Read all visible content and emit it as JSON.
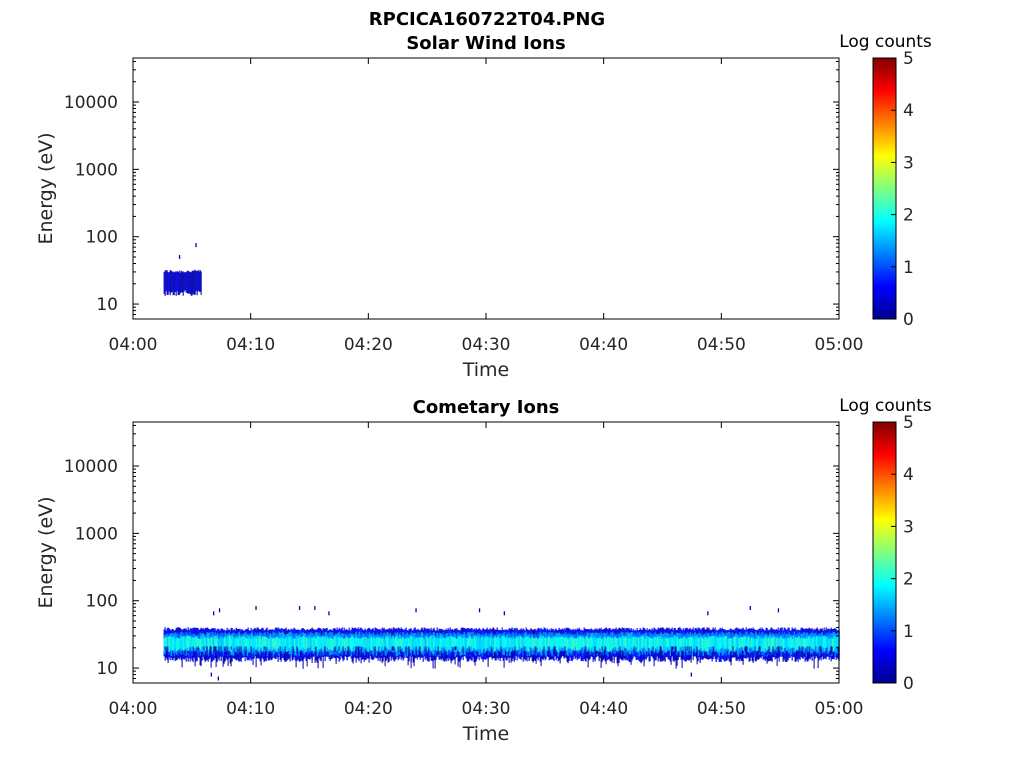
{
  "figure_title": "RPCICA160722T04.PNG",
  "colormap": [
    "#00008f",
    "#0000ff",
    "#0080ff",
    "#00ffff",
    "#80ff80",
    "#ffff00",
    "#ff8000",
    "#ff0000",
    "#800000"
  ],
  "chart_data": [
    {
      "type": "heatmap",
      "title": "Solar Wind Ions",
      "xlabel": "Time",
      "ylabel": "Energy (eV)",
      "xticks": [
        "04:00",
        "04:10",
        "04:20",
        "04:30",
        "04:40",
        "04:50",
        "05:00"
      ],
      "xlim_minutes": [
        0,
        60
      ],
      "yticks": [
        10,
        100,
        1000,
        10000
      ],
      "ytick_labels": [
        "10",
        "100",
        "1000",
        "10000"
      ],
      "ylim": [
        6,
        45000
      ],
      "yscale": "log",
      "colorbar": {
        "label": "Log counts",
        "ticks": [
          "0",
          "1",
          "2",
          "3",
          "4",
          "5"
        ],
        "range": [
          0,
          5
        ]
      },
      "bands": [
        {
          "t_start_min": 2.6,
          "t_end_min": 5.8,
          "e_low": 16,
          "e_high": 29,
          "log_counts": 0.3
        }
      ],
      "scattered": [
        {
          "t_min": 3.9,
          "e": 50,
          "log_counts": 0.3
        },
        {
          "t_min": 5.3,
          "e": 75,
          "log_counts": 0.3
        }
      ]
    },
    {
      "type": "heatmap",
      "title": "Cometary Ions",
      "xlabel": "Time",
      "ylabel": "Energy (eV)",
      "xticks": [
        "04:00",
        "04:10",
        "04:20",
        "04:30",
        "04:40",
        "04:50",
        "05:00"
      ],
      "xlim_minutes": [
        0,
        60
      ],
      "yticks": [
        10,
        100,
        1000,
        10000
      ],
      "ytick_labels": [
        "10",
        "100",
        "1000",
        "10000"
      ],
      "ylim": [
        6,
        45000
      ],
      "yscale": "log",
      "colorbar": {
        "label": "Log counts",
        "ticks": [
          "0",
          "1",
          "2",
          "3",
          "4",
          "5"
        ],
        "range": [
          0,
          5
        ]
      },
      "bands": [
        {
          "t_start_min": 2.6,
          "t_end_min": 60,
          "e_low": 15,
          "e_high": 36,
          "log_counts": 0.5
        },
        {
          "t_start_min": 2.6,
          "t_end_min": 60,
          "e_low": 18,
          "e_high": 31,
          "log_counts": 1.3
        },
        {
          "t_start_min": 2.6,
          "t_end_min": 60,
          "e_low": 21,
          "e_high": 27,
          "log_counts": 1.9
        }
      ],
      "scattered": [
        {
          "t_min": 6.8,
          "e": 65,
          "log_counts": 0.3
        },
        {
          "t_min": 7.3,
          "e": 72,
          "log_counts": 0.3
        },
        {
          "t_min": 10.4,
          "e": 78,
          "log_counts": 0.3
        },
        {
          "t_min": 14.1,
          "e": 78,
          "log_counts": 0.3
        },
        {
          "t_min": 15.4,
          "e": 78,
          "log_counts": 0.3
        },
        {
          "t_min": 16.6,
          "e": 65,
          "log_counts": 0.3
        },
        {
          "t_min": 24.0,
          "e": 72,
          "log_counts": 0.3
        },
        {
          "t_min": 29.4,
          "e": 72,
          "log_counts": 0.3
        },
        {
          "t_min": 31.5,
          "e": 65,
          "log_counts": 0.3
        },
        {
          "t_min": 48.8,
          "e": 65,
          "log_counts": 0.3
        },
        {
          "t_min": 52.4,
          "e": 78,
          "log_counts": 0.3
        },
        {
          "t_min": 54.8,
          "e": 72,
          "log_counts": 0.3
        },
        {
          "t_min": 6.6,
          "e": 8,
          "log_counts": 0.3
        },
        {
          "t_min": 7.2,
          "e": 7,
          "log_counts": 0.3
        },
        {
          "t_min": 47.4,
          "e": 8,
          "log_counts": 0.3
        }
      ]
    }
  ]
}
